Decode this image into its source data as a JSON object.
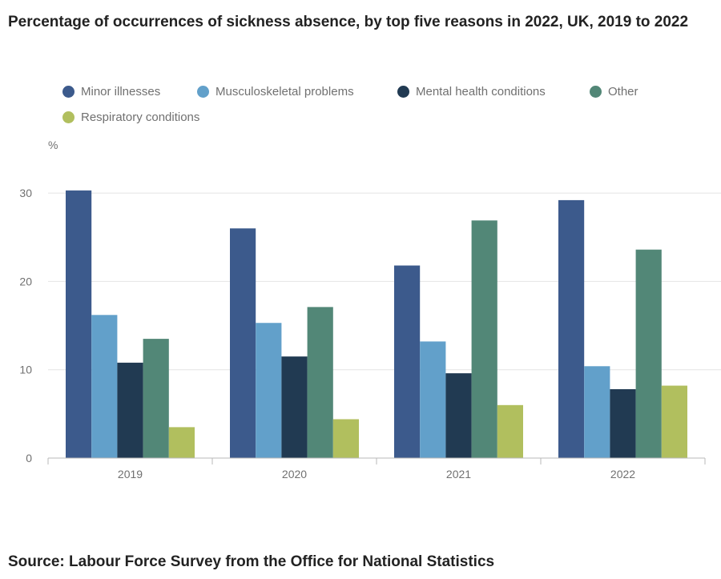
{
  "chart_data": {
    "type": "bar",
    "title": "Percentage of occurrences of sickness absence, by top five reasons in 2022, UK, 2019 to 2022",
    "ylabel": "%",
    "xlabel": "",
    "categories": [
      "2019",
      "2020",
      "2021",
      "2022"
    ],
    "series": [
      {
        "name": "Minor illnesses",
        "color": "#3c5a8c",
        "values": [
          30.3,
          26.0,
          21.8,
          29.2
        ]
      },
      {
        "name": "Musculoskeletal problems",
        "color": "#62a0ca",
        "values": [
          16.2,
          15.3,
          13.2,
          10.4
        ]
      },
      {
        "name": "Mental health conditions",
        "color": "#213a52",
        "values": [
          10.8,
          11.5,
          9.6,
          7.8
        ]
      },
      {
        "name": "Other",
        "color": "#528777",
        "values": [
          13.5,
          17.1,
          26.9,
          23.6
        ]
      },
      {
        "name": "Respiratory conditions",
        "color": "#b1bf5e",
        "values": [
          3.5,
          4.4,
          6.0,
          8.2
        ]
      }
    ],
    "yticks": [
      0,
      10,
      20,
      30
    ],
    "ylim": [
      0,
      33
    ],
    "grid": true,
    "legend_position": "top"
  },
  "source": "Source: Labour Force Survey from the Office for National Statistics"
}
